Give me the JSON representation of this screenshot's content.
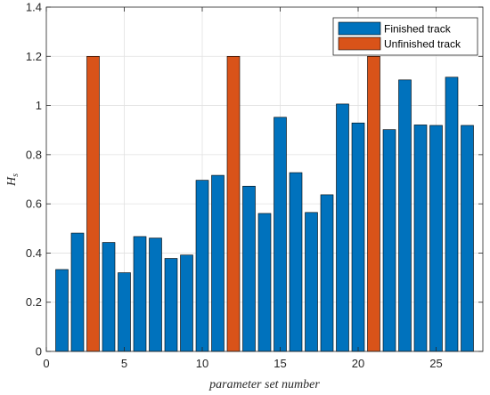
{
  "chart_data": {
    "type": "bar",
    "title": "",
    "xlabel": "parameter set number",
    "ylabel_main": "H",
    "ylabel_sub": "s",
    "xlim": [
      0,
      28
    ],
    "ylim": [
      0,
      1.4
    ],
    "xticks": [
      0,
      5,
      10,
      15,
      20,
      25
    ],
    "yticks": [
      0,
      0.2,
      0.4,
      0.6,
      0.8,
      1,
      1.2,
      1.4
    ],
    "grid": true,
    "legend_position": "top-right",
    "series": [
      {
        "name": "Finished track",
        "color": "#0072BD",
        "x": [
          1,
          2,
          4,
          5,
          6,
          7,
          8,
          9,
          10,
          11,
          13,
          14,
          15,
          16,
          17,
          18,
          19,
          20,
          22,
          23,
          24,
          25,
          26,
          27
        ],
        "values": [
          0.333,
          0.481,
          0.443,
          0.32,
          0.467,
          0.461,
          0.378,
          0.392,
          0.696,
          0.716,
          0.672,
          0.561,
          0.952,
          0.727,
          0.565,
          0.637,
          1.006,
          0.929,
          0.902,
          1.104,
          0.921,
          0.919,
          1.115,
          0.919
        ]
      },
      {
        "name": "Unfinished track",
        "color": "#D95319",
        "x": [
          3,
          12,
          21
        ],
        "values": [
          1.2,
          1.2,
          1.2
        ]
      }
    ]
  }
}
